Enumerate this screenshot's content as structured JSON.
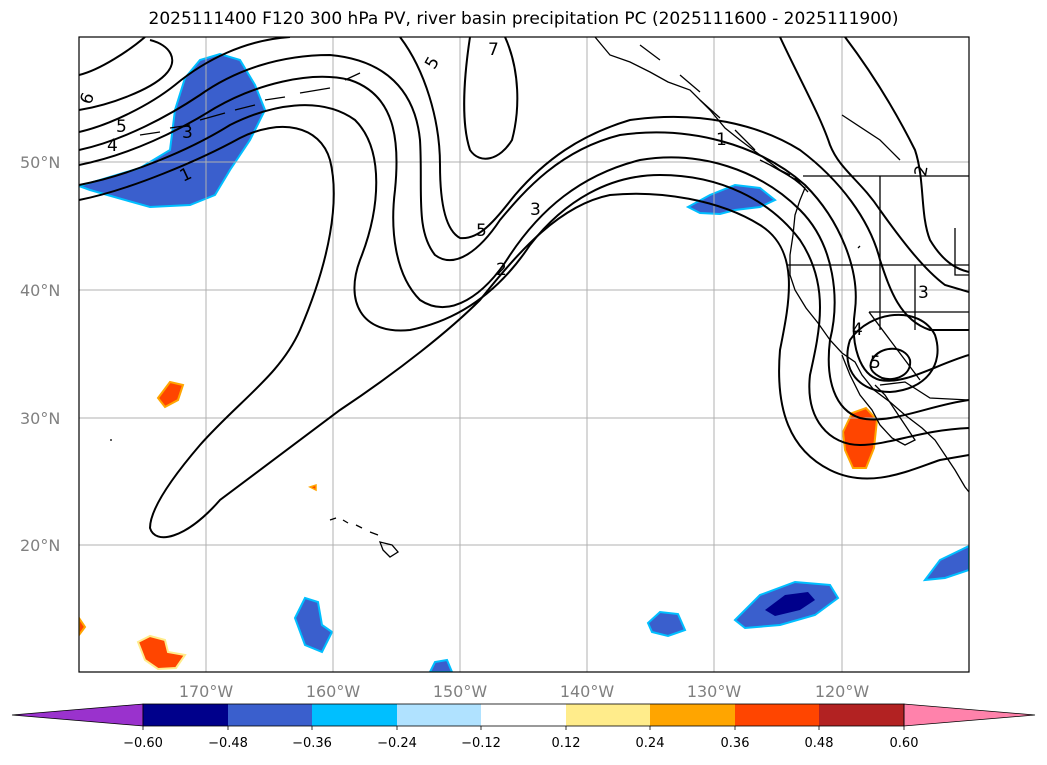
{
  "title": "2025111400 F120 300 hPa PV, river basin precipitation PC (2025111600 - 2025111900)",
  "map": {
    "lat_labels": [
      "50°N",
      "40°N",
      "30°N",
      "20°N"
    ],
    "lon_labels": [
      "170°W",
      "160°W",
      "150°W",
      "140°W",
      "130°W",
      "120°W"
    ],
    "contour_labels": [
      "6",
      "5",
      "4",
      "3",
      "1",
      "7",
      "5",
      "3",
      "2",
      "1",
      "2",
      "3",
      "4",
      "5",
      "5"
    ]
  },
  "colorbar": {
    "colors": [
      "#9a32cd",
      "#00008b",
      "#3a5fcd",
      "#00bfff",
      "#b0e2ff",
      "#ffffff",
      "#ffec8b",
      "#ffa500",
      "#ff4500",
      "#b22222",
      "#ff82ab"
    ],
    "ticks": [
      "−0.60",
      "−0.48",
      "−0.36",
      "−0.24",
      "−0.12",
      "0.12",
      "0.24",
      "0.36",
      "0.48",
      "0.60"
    ]
  }
}
